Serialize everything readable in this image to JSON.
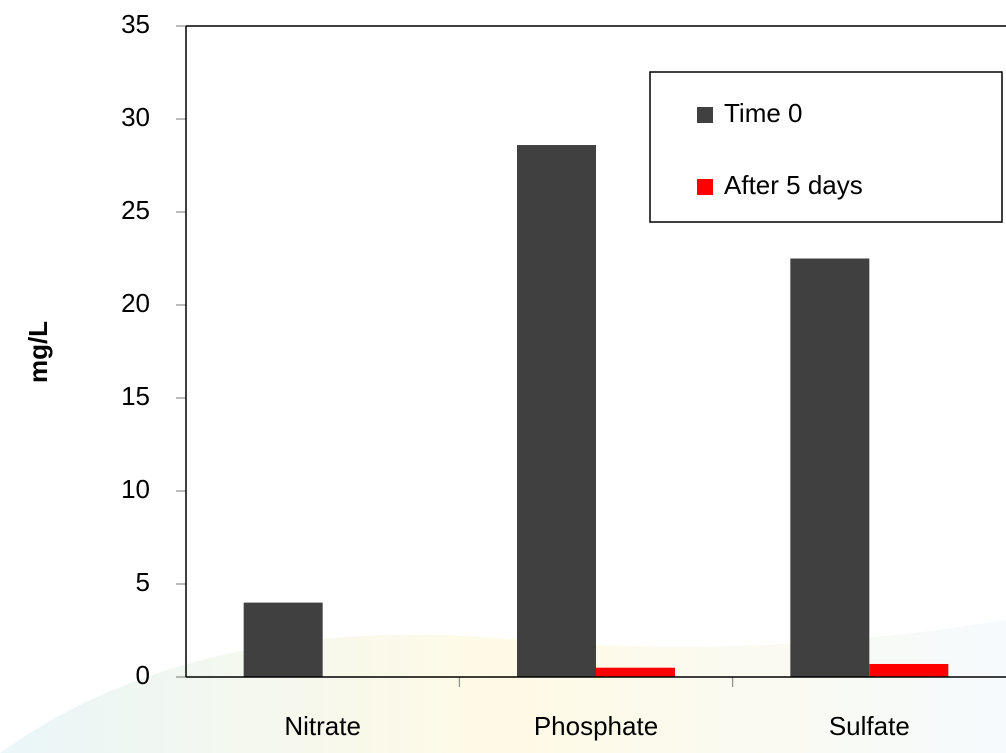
{
  "chart_data": {
    "type": "bar",
    "y_label": "mg/L",
    "categories": [
      "Nitrate",
      "Phosphate",
      "Sulfate"
    ],
    "series": [
      {
        "name": "Time 0",
        "color": "#404040",
        "values": [
          4,
          28.6,
          22.5
        ]
      },
      {
        "name": "After 5 days",
        "color": "#ff0000",
        "values": [
          0,
          0.5,
          0.7
        ]
      }
    ],
    "ylim": [
      0,
      35
    ],
    "yticks": [
      0,
      5,
      10,
      15,
      20,
      25,
      30,
      35
    ],
    "legend": "upper right"
  }
}
